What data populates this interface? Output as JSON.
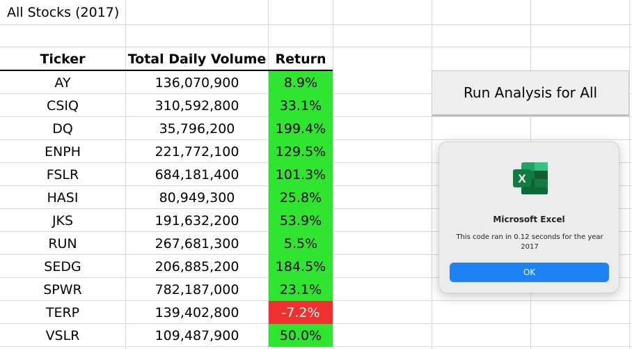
{
  "sheet_title": "All Stocks (2017)",
  "headers": {
    "ticker": "Ticker",
    "volume": "Total Daily Volume",
    "return": "Return"
  },
  "rows": [
    {
      "ticker": "AY",
      "volume": "136,070,900",
      "return": "8.9%",
      "status": "positive"
    },
    {
      "ticker": "CSIQ",
      "volume": "310,592,800",
      "return": "33.1%",
      "status": "positive"
    },
    {
      "ticker": "DQ",
      "volume": "35,796,200",
      "return": "199.4%",
      "status": "positive"
    },
    {
      "ticker": "ENPH",
      "volume": "221,772,100",
      "return": "129.5%",
      "status": "positive"
    },
    {
      "ticker": "FSLR",
      "volume": "684,181,400",
      "return": "101.3%",
      "status": "positive"
    },
    {
      "ticker": "HASI",
      "volume": "80,949,300",
      "return": "25.8%",
      "status": "positive"
    },
    {
      "ticker": "JKS",
      "volume": "191,632,200",
      "return": "53.9%",
      "status": "positive"
    },
    {
      "ticker": "RUN",
      "volume": "267,681,300",
      "return": "5.5%",
      "status": "positive"
    },
    {
      "ticker": "SEDG",
      "volume": "206,885,200",
      "return": "184.5%",
      "status": "positive"
    },
    {
      "ticker": "SPWR",
      "volume": "782,187,000",
      "return": "23.1%",
      "status": "positive"
    },
    {
      "ticker": "TERP",
      "volume": "139,402,800",
      "return": "-7.2%",
      "status": "negative"
    },
    {
      "ticker": "VSLR",
      "volume": "109,487,900",
      "return": "50.0%",
      "status": "positive"
    }
  ],
  "run_button_label": "Run Analysis for All",
  "dialog": {
    "icon": "excel-icon",
    "title": "Microsoft Excel",
    "message": "This code ran in 0.12 seconds for the year 2017",
    "ok_label": "OK"
  },
  "colors": {
    "positive": "#2fe52f",
    "negative": "#f02f2f",
    "ok_button": "#1f82f3"
  }
}
